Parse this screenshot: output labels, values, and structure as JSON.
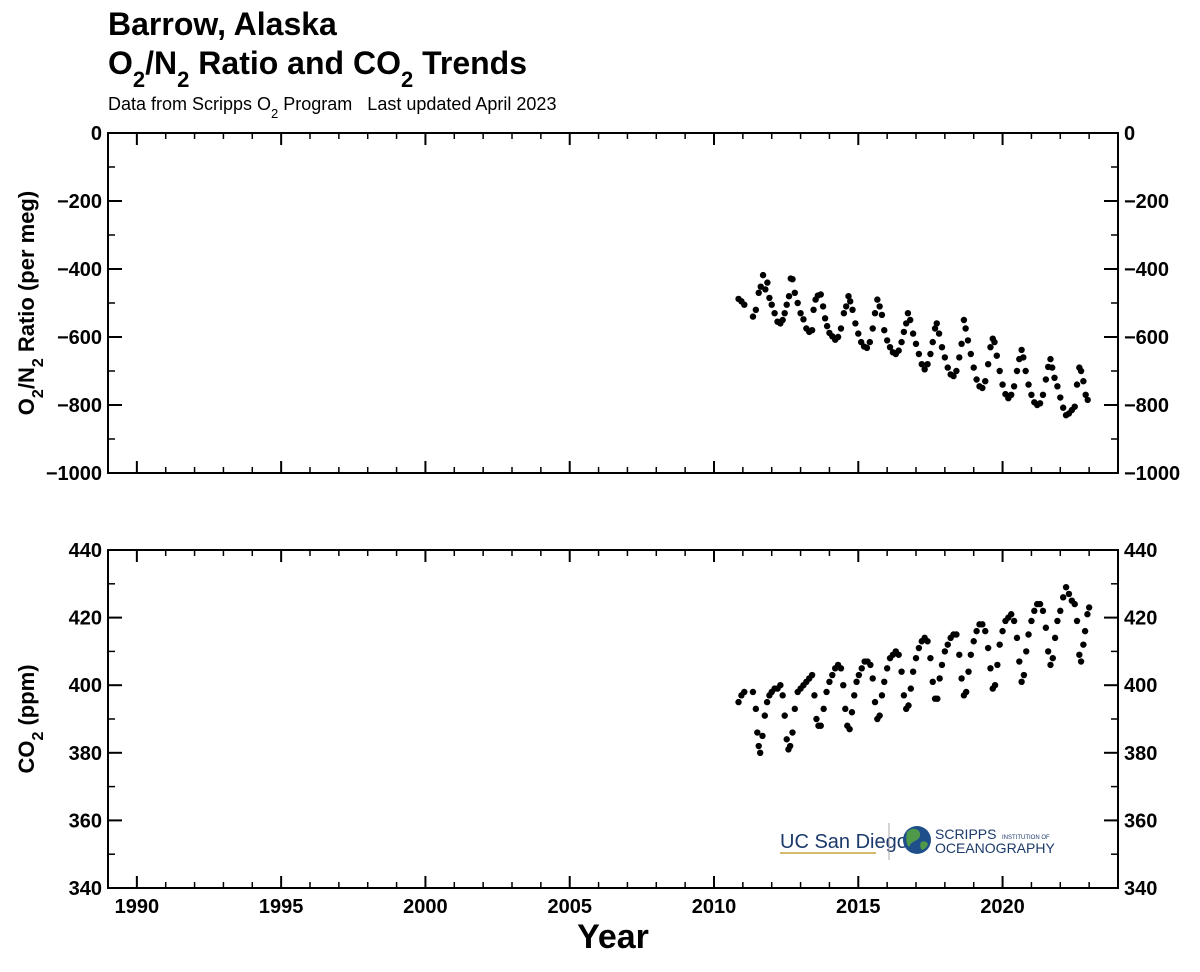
{
  "header": {
    "title_line1": "Barrow, Alaska",
    "title_line2_parts": [
      "O",
      "2",
      "/N",
      "2",
      " Ratio and CO",
      "2",
      " Trends"
    ],
    "subtitle_parts": [
      "Data from Scripps O",
      "2",
      " Program   Last updated April 2023"
    ]
  },
  "logos": {
    "ucsd": "UC San Diego",
    "scripps_line1": "SCRIPPS",
    "scripps_small": "INSTITUTION OF",
    "scripps_line2": "OCEANOGRAPHY",
    "ucsd_color": "#1b3a6b",
    "scripps_color": "#1b3a6b"
  },
  "chart_data": [
    {
      "type": "scatter",
      "name": "o2n2",
      "ylabel_parts": [
        "O",
        "2",
        "/N",
        "2",
        " Ratio (per meg)"
      ],
      "xlim": [
        1989,
        2024
      ],
      "ylim": [
        -1000,
        0
      ],
      "yticks": [
        0,
        -200,
        -400,
        -600,
        -800,
        -1000
      ],
      "ytick_labels": [
        "0",
        "−200",
        "−400",
        "−600",
        "−800",
        "−1000"
      ],
      "points": [
        [
          2010.85,
          -488
        ],
        [
          2010.95,
          -495
        ],
        [
          2011.05,
          -505
        ],
        [
          2011.35,
          -540
        ],
        [
          2011.45,
          -520
        ],
        [
          2011.55,
          -470
        ],
        [
          2011.62,
          -452
        ],
        [
          2011.7,
          -418
        ],
        [
          2011.78,
          -460
        ],
        [
          2011.85,
          -440
        ],
        [
          2011.92,
          -485
        ],
        [
          2012.0,
          -505
        ],
        [
          2012.1,
          -530
        ],
        [
          2012.2,
          -555
        ],
        [
          2012.3,
          -560
        ],
        [
          2012.38,
          -550
        ],
        [
          2012.45,
          -530
        ],
        [
          2012.52,
          -505
        ],
        [
          2012.6,
          -480
        ],
        [
          2012.66,
          -428
        ],
        [
          2012.72,
          -430
        ],
        [
          2012.8,
          -470
        ],
        [
          2012.9,
          -500
        ],
        [
          2013.0,
          -530
        ],
        [
          2013.1,
          -548
        ],
        [
          2013.2,
          -575
        ],
        [
          2013.3,
          -585
        ],
        [
          2013.4,
          -580
        ],
        [
          2013.45,
          -520
        ],
        [
          2013.52,
          -490
        ],
        [
          2013.6,
          -478
        ],
        [
          2013.7,
          -475
        ],
        [
          2013.78,
          -510
        ],
        [
          2013.85,
          -545
        ],
        [
          2013.92,
          -568
        ],
        [
          2014.0,
          -588
        ],
        [
          2014.1,
          -598
        ],
        [
          2014.2,
          -608
        ],
        [
          2014.3,
          -600
        ],
        [
          2014.4,
          -575
        ],
        [
          2014.5,
          -530
        ],
        [
          2014.58,
          -510
        ],
        [
          2014.66,
          -480
        ],
        [
          2014.72,
          -495
        ],
        [
          2014.8,
          -520
        ],
        [
          2014.9,
          -560
        ],
        [
          2015.0,
          -590
        ],
        [
          2015.1,
          -615
        ],
        [
          2015.2,
          -628
        ],
        [
          2015.3,
          -632
        ],
        [
          2015.4,
          -615
        ],
        [
          2015.5,
          -575
        ],
        [
          2015.58,
          -530
        ],
        [
          2015.66,
          -490
        ],
        [
          2015.74,
          -510
        ],
        [
          2015.82,
          -535
        ],
        [
          2015.9,
          -580
        ],
        [
          2016.0,
          -610
        ],
        [
          2016.1,
          -630
        ],
        [
          2016.2,
          -645
        ],
        [
          2016.3,
          -650
        ],
        [
          2016.4,
          -640
        ],
        [
          2016.5,
          -615
        ],
        [
          2016.58,
          -585
        ],
        [
          2016.66,
          -560
        ],
        [
          2016.72,
          -530
        ],
        [
          2016.8,
          -550
        ],
        [
          2016.9,
          -590
        ],
        [
          2017.0,
          -620
        ],
        [
          2017.1,
          -650
        ],
        [
          2017.2,
          -680
        ],
        [
          2017.3,
          -695
        ],
        [
          2017.4,
          -680
        ],
        [
          2017.5,
          -650
        ],
        [
          2017.58,
          -615
        ],
        [
          2017.66,
          -575
        ],
        [
          2017.72,
          -560
        ],
        [
          2017.8,
          -590
        ],
        [
          2017.9,
          -630
        ],
        [
          2018.0,
          -660
        ],
        [
          2018.1,
          -690
        ],
        [
          2018.2,
          -710
        ],
        [
          2018.3,
          -715
        ],
        [
          2018.4,
          -700
        ],
        [
          2018.5,
          -660
        ],
        [
          2018.58,
          -620
        ],
        [
          2018.66,
          -550
        ],
        [
          2018.72,
          -575
        ],
        [
          2018.8,
          -610
        ],
        [
          2018.9,
          -650
        ],
        [
          2019.0,
          -690
        ],
        [
          2019.1,
          -725
        ],
        [
          2019.2,
          -745
        ],
        [
          2019.3,
          -750
        ],
        [
          2019.4,
          -730
        ],
        [
          2019.5,
          -680
        ],
        [
          2019.58,
          -630
        ],
        [
          2019.66,
          -605
        ],
        [
          2019.72,
          -615
        ],
        [
          2019.8,
          -655
        ],
        [
          2019.9,
          -700
        ],
        [
          2020.0,
          -740
        ],
        [
          2020.1,
          -768
        ],
        [
          2020.2,
          -780
        ],
        [
          2020.3,
          -770
        ],
        [
          2020.4,
          -745
        ],
        [
          2020.5,
          -700
        ],
        [
          2020.58,
          -665
        ],
        [
          2020.66,
          -638
        ],
        [
          2020.72,
          -660
        ],
        [
          2020.8,
          -700
        ],
        [
          2020.9,
          -740
        ],
        [
          2021.0,
          -770
        ],
        [
          2021.1,
          -792
        ],
        [
          2021.2,
          -800
        ],
        [
          2021.3,
          -795
        ],
        [
          2021.4,
          -770
        ],
        [
          2021.5,
          -725
        ],
        [
          2021.58,
          -688
        ],
        [
          2021.66,
          -665
        ],
        [
          2021.72,
          -690
        ],
        [
          2021.8,
          -720
        ],
        [
          2021.9,
          -745
        ],
        [
          2022.0,
          -778
        ],
        [
          2022.1,
          -808
        ],
        [
          2022.2,
          -830
        ],
        [
          2022.3,
          -825
        ],
        [
          2022.4,
          -815
        ],
        [
          2022.5,
          -805
        ],
        [
          2022.58,
          -740
        ],
        [
          2022.66,
          -690
        ],
        [
          2022.72,
          -700
        ],
        [
          2022.8,
          -730
        ],
        [
          2022.88,
          -770
        ],
        [
          2022.95,
          -785
        ]
      ]
    },
    {
      "type": "scatter",
      "name": "co2",
      "ylabel_parts": [
        "CO",
        "2",
        " (ppm)"
      ],
      "xlim": [
        1989,
        2024
      ],
      "ylim": [
        340,
        440
      ],
      "yticks": [
        340,
        360,
        380,
        400,
        420,
        440
      ],
      "ytick_labels": [
        "340",
        "360",
        "380",
        "400",
        "420",
        "440"
      ],
      "xticks": [
        1990,
        1995,
        2000,
        2005,
        2010,
        2015,
        2020
      ],
      "xtick_labels": [
        "1990",
        "1995",
        "2000",
        "2005",
        "2010",
        "2015",
        "2020"
      ],
      "xlabel": "Year",
      "points": [
        [
          2010.85,
          395
        ],
        [
          2010.95,
          397
        ],
        [
          2011.05,
          398
        ],
        [
          2011.35,
          398
        ],
        [
          2011.45,
          393
        ],
        [
          2011.5,
          386
        ],
        [
          2011.55,
          382
        ],
        [
          2011.6,
          380
        ],
        [
          2011.68,
          385
        ],
        [
          2011.76,
          391
        ],
        [
          2011.84,
          395
        ],
        [
          2011.92,
          397
        ],
        [
          2012.0,
          398
        ],
        [
          2012.1,
          399
        ],
        [
          2012.2,
          399
        ],
        [
          2012.3,
          400
        ],
        [
          2012.38,
          397
        ],
        [
          2012.45,
          391
        ],
        [
          2012.52,
          384
        ],
        [
          2012.58,
          381
        ],
        [
          2012.64,
          382
        ],
        [
          2012.72,
          386
        ],
        [
          2012.8,
          393
        ],
        [
          2012.9,
          398
        ],
        [
          2013.0,
          399
        ],
        [
          2013.1,
          400
        ],
        [
          2013.2,
          401
        ],
        [
          2013.3,
          402
        ],
        [
          2013.4,
          403
        ],
        [
          2013.48,
          397
        ],
        [
          2013.55,
          390
        ],
        [
          2013.62,
          388
        ],
        [
          2013.7,
          388
        ],
        [
          2013.8,
          393
        ],
        [
          2013.9,
          398
        ],
        [
          2014.0,
          401
        ],
        [
          2014.1,
          403
        ],
        [
          2014.2,
          405
        ],
        [
          2014.3,
          406
        ],
        [
          2014.4,
          405
        ],
        [
          2014.48,
          400
        ],
        [
          2014.55,
          393
        ],
        [
          2014.62,
          388
        ],
        [
          2014.7,
          387
        ],
        [
          2014.78,
          392
        ],
        [
          2014.86,
          397
        ],
        [
          2014.94,
          401
        ],
        [
          2015.02,
          403
        ],
        [
          2015.12,
          405
        ],
        [
          2015.22,
          407
        ],
        [
          2015.32,
          407
        ],
        [
          2015.42,
          406
        ],
        [
          2015.5,
          402
        ],
        [
          2015.58,
          395
        ],
        [
          2015.66,
          390
        ],
        [
          2015.74,
          391
        ],
        [
          2015.82,
          397
        ],
        [
          2015.9,
          401
        ],
        [
          2016.0,
          405
        ],
        [
          2016.1,
          408
        ],
        [
          2016.2,
          409
        ],
        [
          2016.3,
          410
        ],
        [
          2016.4,
          409
        ],
        [
          2016.5,
          404
        ],
        [
          2016.58,
          397
        ],
        [
          2016.66,
          393
        ],
        [
          2016.74,
          394
        ],
        [
          2016.82,
          399
        ],
        [
          2016.9,
          404
        ],
        [
          2017.0,
          408
        ],
        [
          2017.1,
          411
        ],
        [
          2017.2,
          413
        ],
        [
          2017.3,
          414
        ],
        [
          2017.4,
          413
        ],
        [
          2017.5,
          408
        ],
        [
          2017.58,
          401
        ],
        [
          2017.66,
          396
        ],
        [
          2017.74,
          396
        ],
        [
          2017.82,
          402
        ],
        [
          2017.9,
          406
        ],
        [
          2018.0,
          410
        ],
        [
          2018.1,
          412
        ],
        [
          2018.2,
          414
        ],
        [
          2018.3,
          415
        ],
        [
          2018.4,
          415
        ],
        [
          2018.5,
          409
        ],
        [
          2018.58,
          402
        ],
        [
          2018.66,
          397
        ],
        [
          2018.74,
          398
        ],
        [
          2018.82,
          404
        ],
        [
          2018.9,
          409
        ],
        [
          2019.0,
          413
        ],
        [
          2019.1,
          416
        ],
        [
          2019.2,
          418
        ],
        [
          2019.3,
          418
        ],
        [
          2019.4,
          416
        ],
        [
          2019.5,
          411
        ],
        [
          2019.58,
          405
        ],
        [
          2019.66,
          399
        ],
        [
          2019.74,
          400
        ],
        [
          2019.82,
          406
        ],
        [
          2019.9,
          412
        ],
        [
          2020.0,
          416
        ],
        [
          2020.1,
          419
        ],
        [
          2020.2,
          420
        ],
        [
          2020.3,
          421
        ],
        [
          2020.4,
          419
        ],
        [
          2020.5,
          414
        ],
        [
          2020.58,
          407
        ],
        [
          2020.66,
          401
        ],
        [
          2020.74,
          403
        ],
        [
          2020.82,
          410
        ],
        [
          2020.9,
          415
        ],
        [
          2021.0,
          419
        ],
        [
          2021.1,
          422
        ],
        [
          2021.2,
          424
        ],
        [
          2021.3,
          424
        ],
        [
          2021.4,
          422
        ],
        [
          2021.5,
          417
        ],
        [
          2021.58,
          410
        ],
        [
          2021.66,
          406
        ],
        [
          2021.74,
          408
        ],
        [
          2021.82,
          414
        ],
        [
          2021.9,
          419
        ],
        [
          2022.0,
          422
        ],
        [
          2022.1,
          426
        ],
        [
          2022.2,
          429
        ],
        [
          2022.3,
          427
        ],
        [
          2022.4,
          425
        ],
        [
          2022.5,
          424
        ],
        [
          2022.58,
          419
        ],
        [
          2022.66,
          409
        ],
        [
          2022.72,
          407
        ],
        [
          2022.8,
          412
        ],
        [
          2022.86,
          416
        ],
        [
          2022.94,
          421
        ],
        [
          2023.0,
          423
        ]
      ]
    }
  ]
}
